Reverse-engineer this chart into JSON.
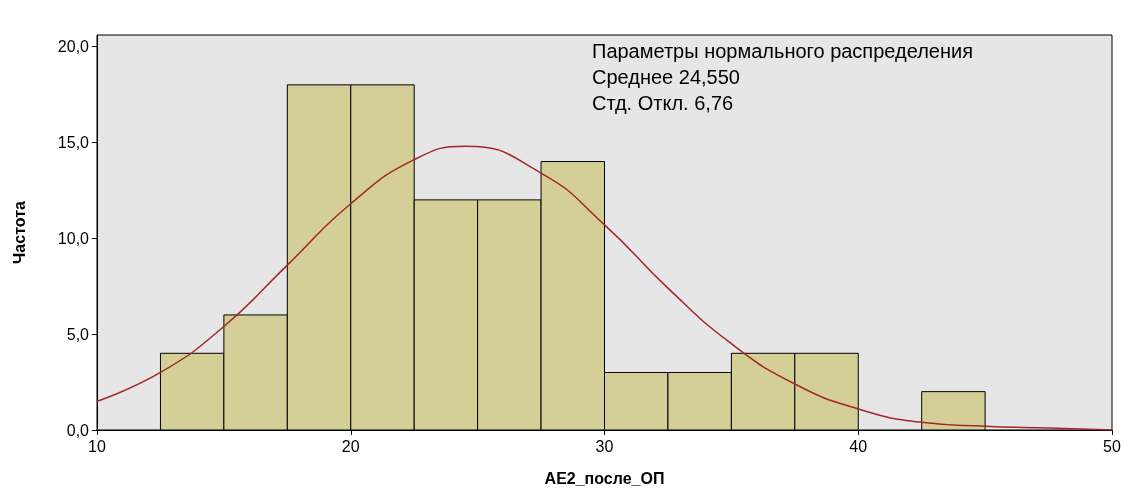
{
  "chart_data": {
    "type": "histogram",
    "xlabel": "AE2_после_ОП",
    "ylabel": "Частота",
    "bins": [
      12.5,
      15,
      17.5,
      20,
      22.5,
      25,
      27.5,
      30,
      32.5,
      35,
      37.5,
      40,
      42.5,
      45
    ],
    "values": [
      4,
      6,
      18,
      18,
      12,
      12,
      14,
      3,
      3,
      4,
      4,
      0,
      2
    ],
    "color": "#d4cf97",
    "series": [
      {
        "type": "line",
        "color": "#a3262a",
        "x": [
          10,
          12.5,
          15,
          17.5,
          20,
          22.5,
          24.55,
          27.5,
          30,
          32.5,
          35,
          37.5,
          40,
          42.5,
          45,
          47.5,
          50
        ],
        "values": [
          1.5,
          3.0,
          5.4,
          8.6,
          11.8,
          14.1,
          14.8,
          13.4,
          10.7,
          7.4,
          4.5,
          2.4,
          1.1,
          0.4,
          0.2,
          0.1,
          0.0
        ]
      }
    ],
    "xlim": [
      10,
      50
    ],
    "xticks": [
      10,
      20,
      30,
      40,
      50
    ],
    "ylim": [
      0,
      20.6
    ],
    "yticks": [
      {
        "value": 0,
        "label": "0,0"
      },
      {
        "value": 5,
        "label": "5,0"
      },
      {
        "value": 10,
        "label": "10,0"
      },
      {
        "value": 15,
        "label": "15,0"
      },
      {
        "value": 20,
        "label": "20,0"
      }
    ],
    "annotations": [
      "Параметры нормального распределения",
      "Среднее 24,550",
      "Стд. Откл. 6,76"
    ],
    "grid": false,
    "marker": "none",
    "line_style": "solid"
  }
}
